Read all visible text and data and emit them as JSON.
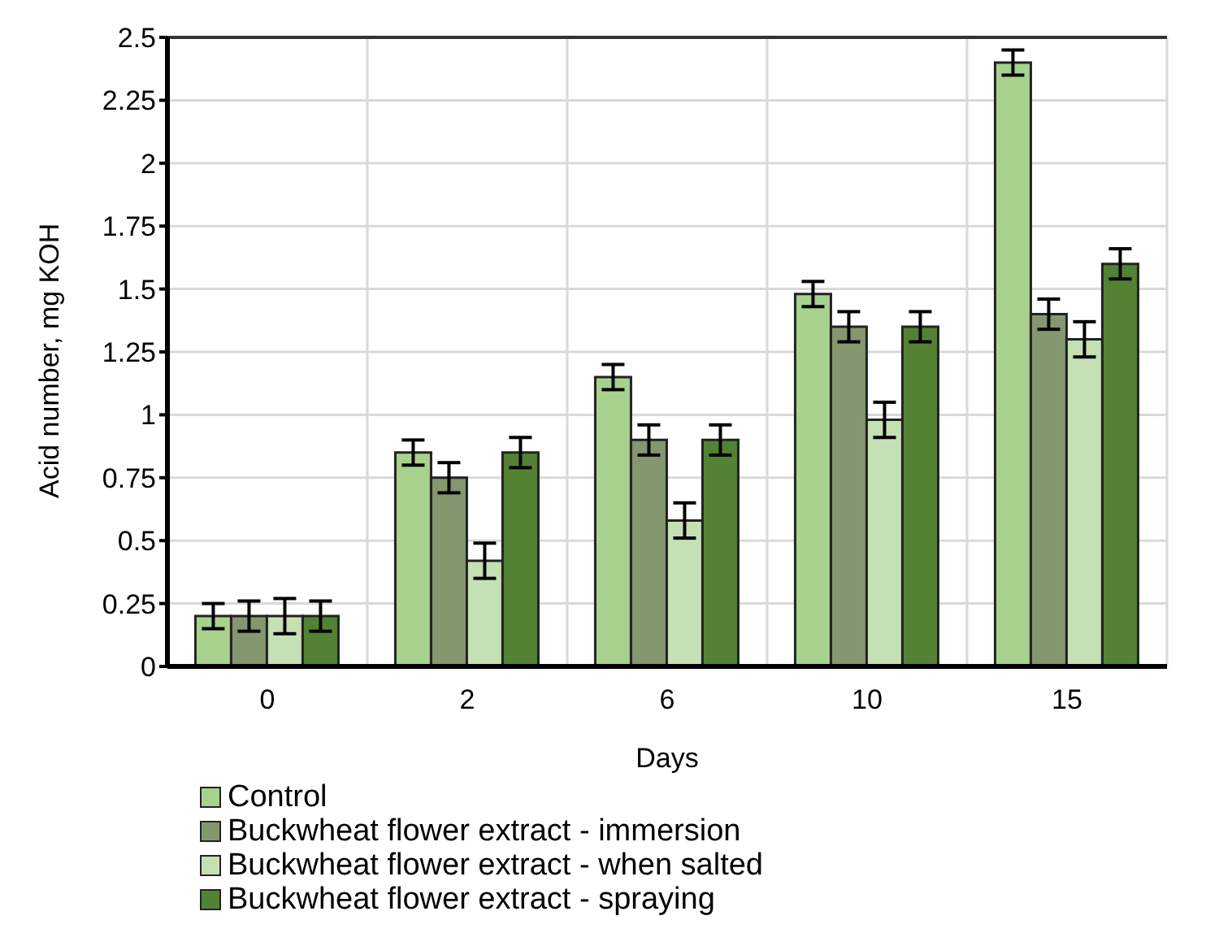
{
  "chart_data": {
    "type": "bar",
    "xlabel": "Days",
    "ylabel": "Acid number, mg KOH",
    "categories": [
      "0",
      "2",
      "6",
      "10",
      "15"
    ],
    "series": [
      {
        "name": "Control",
        "color": "#a9d18e",
        "values": [
          0.2,
          0.85,
          1.15,
          1.48,
          2.4
        ],
        "errors": [
          0.05,
          0.05,
          0.05,
          0.05,
          0.05
        ]
      },
      {
        "name": "Buckwheat flower extract - immersion",
        "color": "#84976e",
        "values": [
          0.2,
          0.75,
          0.9,
          1.35,
          1.4
        ],
        "errors": [
          0.06,
          0.06,
          0.06,
          0.06,
          0.06
        ]
      },
      {
        "name": "Buckwheat flower extract - when salted",
        "color": "#c5e0b4",
        "values": [
          0.2,
          0.42,
          0.58,
          0.98,
          1.3
        ],
        "errors": [
          0.07,
          0.07,
          0.07,
          0.07,
          0.07
        ]
      },
      {
        "name": "Buckwheat flower extract - spraying",
        "color": "#548235",
        "values": [
          0.2,
          0.85,
          0.9,
          1.35,
          1.6
        ],
        "errors": [
          0.06,
          0.06,
          0.06,
          0.06,
          0.06
        ]
      }
    ],
    "ylim": [
      0,
      2.5
    ],
    "yticks": [
      0,
      0.25,
      0.5,
      0.75,
      1,
      1.25,
      1.5,
      1.75,
      2,
      2.25,
      2.5
    ],
    "grid": true,
    "legend": "bottom left"
  }
}
